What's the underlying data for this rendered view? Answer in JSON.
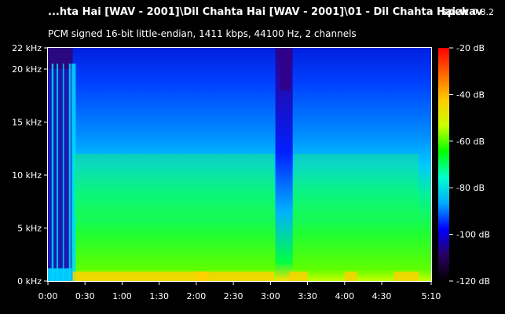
{
  "header": {
    "file_title": "...hta Hai [WAV - 2001]\\Dil Chahta Hai [WAV - 2001]\\01 - Dil Chahta Hai.wav",
    "app_name": "spek",
    "app_version": "0.8.2",
    "stream_info": "PCM signed 16-bit little-endian, 1411 kbps, 44100 Hz, 2 channels"
  },
  "chart_data": {
    "type": "heatmap",
    "title": "",
    "xlabel": "",
    "ylabel": "",
    "x_unit": "time (m:ss)",
    "y_unit": "kHz",
    "xlim_seconds": [
      0,
      310
    ],
    "ylim_khz": [
      0,
      22
    ],
    "x_ticks": [
      {
        "value": 0,
        "label": "0:00"
      },
      {
        "value": 30,
        "label": "0:30"
      },
      {
        "value": 60,
        "label": "1:00"
      },
      {
        "value": 90,
        "label": "1:30"
      },
      {
        "value": 120,
        "label": "2:00"
      },
      {
        "value": 150,
        "label": "2:30"
      },
      {
        "value": 180,
        "label": "3:00"
      },
      {
        "value": 210,
        "label": "3:30"
      },
      {
        "value": 240,
        "label": "4:00"
      },
      {
        "value": 270,
        "label": "4:30"
      },
      {
        "value": 310,
        "label": "5:10"
      }
    ],
    "y_ticks": [
      {
        "value": 0,
        "label": "0 kHz"
      },
      {
        "value": 5,
        "label": "5 kHz"
      },
      {
        "value": 10,
        "label": "10 kHz"
      },
      {
        "value": 15,
        "label": "15 kHz"
      },
      {
        "value": 20,
        "label": "20 kHz"
      },
      {
        "value": 22,
        "label": "22 kHz"
      }
    ],
    "colorbar": {
      "min_db": -120,
      "max_db": -20,
      "ticks": [
        {
          "value": -20,
          "label": "-20 dB"
        },
        {
          "value": -40,
          "label": "-40 dB"
        },
        {
          "value": -60,
          "label": "-60 dB"
        },
        {
          "value": -80,
          "label": "-80 dB"
        },
        {
          "value": -100,
          "label": "-100 dB"
        },
        {
          "value": -120,
          "label": "-120 dB"
        }
      ],
      "colors": [
        "#000000",
        "#2a0060",
        "#0000ff",
        "#00aaff",
        "#00ffcc",
        "#00ff00",
        "#ccff00",
        "#ffcc00",
        "#ff6600",
        "#ff0000"
      ]
    }
  }
}
